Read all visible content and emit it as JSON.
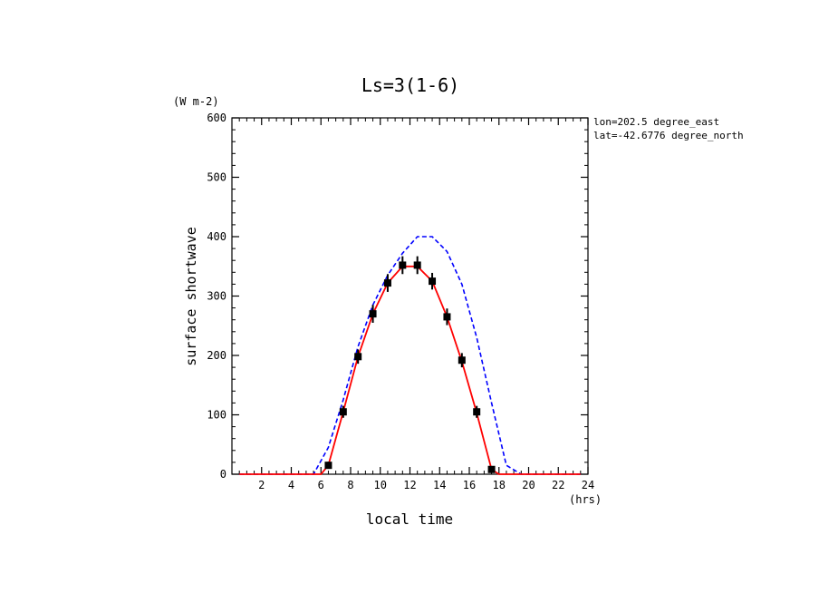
{
  "chart_data": {
    "type": "line",
    "title": "Ls=3(1-6)",
    "xlabel": "local time",
    "ylabel": "surface shortwave",
    "x_unit": "(hrs)",
    "y_unit": "(W m-2)",
    "xlim": [
      0,
      24
    ],
    "ylim": [
      0,
      600
    ],
    "x_ticks": [
      2,
      4,
      6,
      8,
      10,
      12,
      14,
      16,
      18,
      20,
      22,
      24
    ],
    "y_ticks": [
      0,
      100,
      200,
      300,
      400,
      500,
      600
    ],
    "info": [
      "lon=202.5 degree_east",
      "lat=-42.6776 degree_north"
    ],
    "series": [
      {
        "style": "dashed",
        "color": "#0000ff",
        "x": [
          0.5,
          1.5,
          2.5,
          3.5,
          4.5,
          5.5,
          6.5,
          7.5,
          8.5,
          9.5,
          10.5,
          11.5,
          12.5,
          13.5,
          14.5,
          15.5,
          16.5,
          17.5,
          18.5,
          19.5,
          20.5,
          21.5,
          22.5,
          23.5
        ],
        "y": [
          0,
          0,
          0,
          0,
          0,
          0,
          45,
          125,
          215,
          285,
          335,
          372,
          400,
          400,
          375,
          320,
          230,
          120,
          15,
          0,
          0,
          0,
          0,
          0
        ]
      },
      {
        "style": "solid",
        "color": "#ff0000",
        "x": [
          0.5,
          1.5,
          2.5,
          3.5,
          4.5,
          5.5,
          6.0,
          6.5,
          7.5,
          8.5,
          9.5,
          10.5,
          11.5,
          12.5,
          13.5,
          14.5,
          15.5,
          16.5,
          17.5,
          18.0,
          18.5,
          19.5,
          20.5,
          21.5,
          22.5,
          23.5
        ],
        "y": [
          0,
          0,
          0,
          0,
          0,
          0,
          0,
          15,
          105,
          198,
          270,
          322,
          350,
          350,
          325,
          265,
          190,
          103,
          8,
          0,
          0,
          0,
          0,
          0,
          0,
          0
        ]
      },
      {
        "style": "markers",
        "color": "#000000",
        "x": [
          6.5,
          7.5,
          8.5,
          9.5,
          10.5,
          11.5,
          12.5,
          13.5,
          14.5,
          15.5,
          16.5,
          17.5
        ],
        "y": [
          15,
          105,
          198,
          270,
          322,
          352,
          352,
          325,
          265,
          192,
          105,
          8
        ],
        "err": [
          6,
          10,
          12,
          15,
          15,
          15,
          15,
          14,
          14,
          12,
          10,
          4
        ]
      }
    ]
  }
}
